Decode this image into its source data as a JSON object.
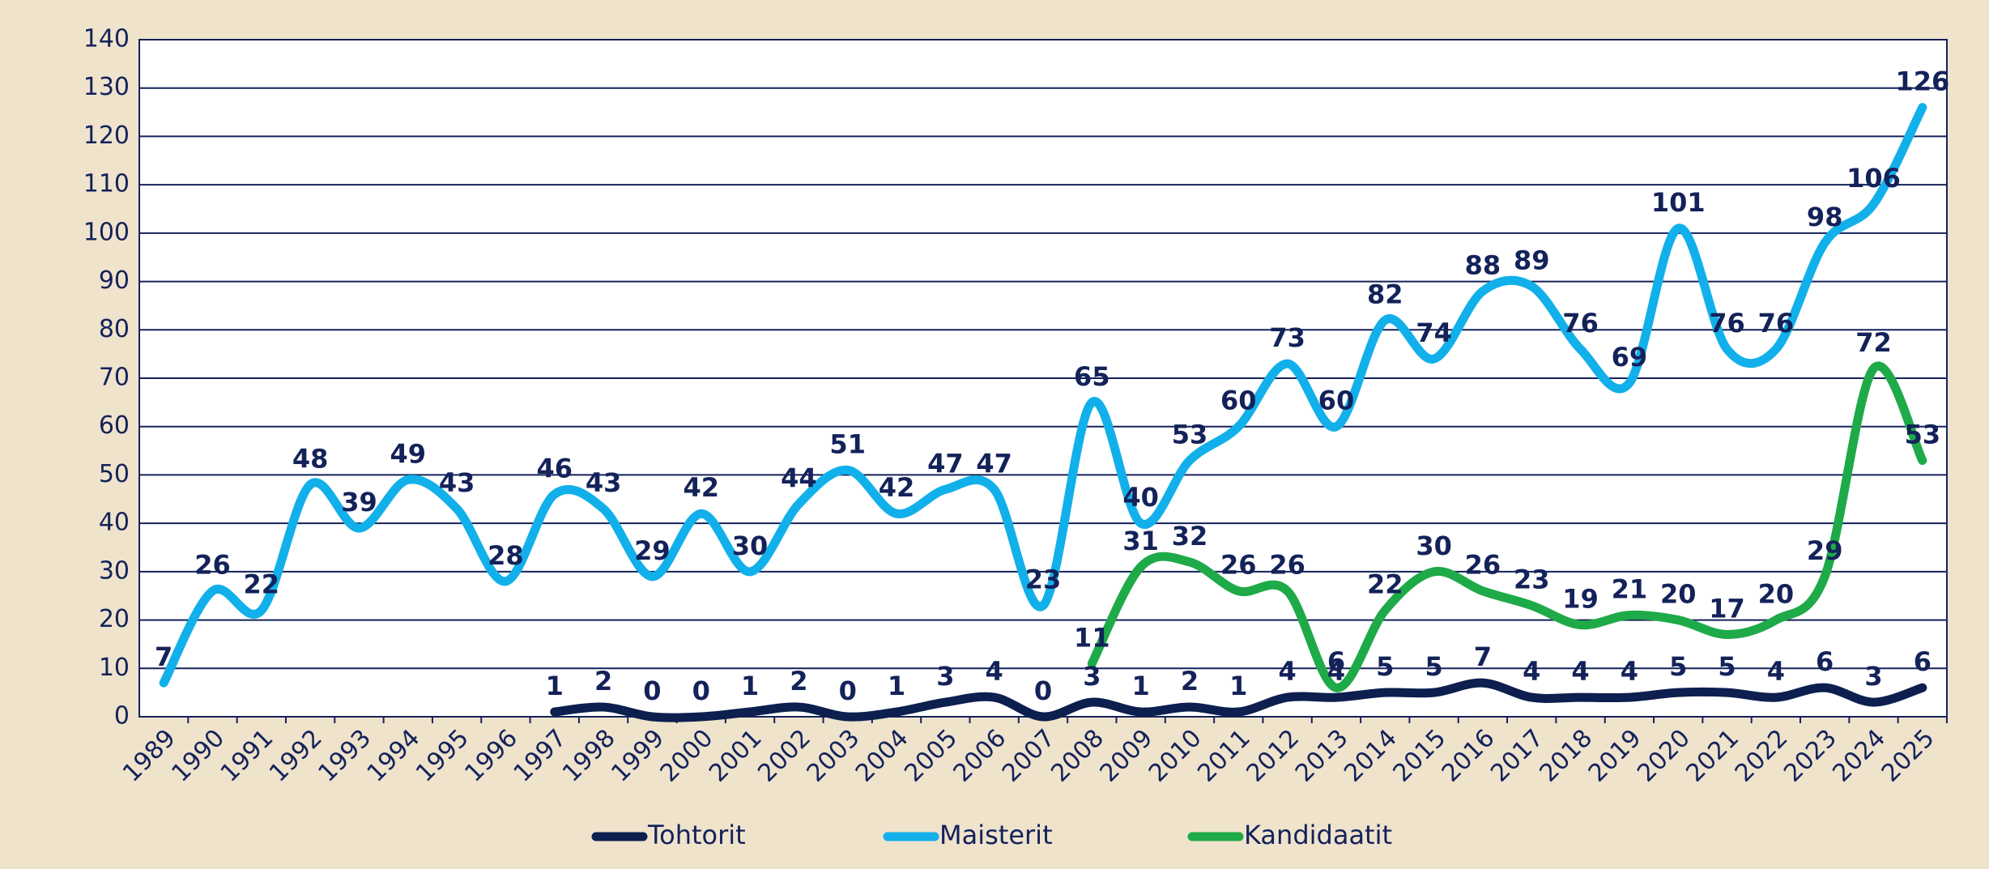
{
  "chart_data": {
    "type": "line",
    "categories": [
      "1989",
      "1990",
      "1991",
      "1992",
      "1993",
      "1994",
      "1995",
      "1996",
      "1997",
      "1998",
      "1999",
      "2000",
      "2001",
      "2002",
      "2003",
      "2004",
      "2005",
      "2006",
      "2007",
      "2008",
      "2009",
      "2010",
      "2011",
      "2012",
      "2013",
      "2014",
      "2015",
      "2016",
      "2017",
      "2018",
      "2019",
      "2020",
      "2021",
      "2022",
      "2023",
      "2024",
      "2025"
    ],
    "series": [
      {
        "name": "Tohtorit",
        "color": "#0d1f4f",
        "values": [
          null,
          null,
          null,
          null,
          null,
          null,
          null,
          null,
          1,
          2,
          0,
          0,
          1,
          2,
          0,
          1,
          3,
          4,
          0,
          3,
          1,
          2,
          1,
          4,
          4,
          5,
          5,
          7,
          4,
          4,
          4,
          5,
          5,
          4,
          6,
          3,
          6
        ]
      },
      {
        "name": "Maisterit",
        "color": "#12b0ea",
        "values": [
          7,
          26,
          22,
          48,
          39,
          49,
          43,
          28,
          46,
          43,
          29,
          42,
          30,
          44,
          51,
          42,
          47,
          47,
          23,
          65,
          40,
          53,
          60,
          73,
          60,
          82,
          74,
          88,
          89,
          76,
          69,
          101,
          76,
          76,
          98,
          106,
          126
        ]
      },
      {
        "name": "Kandidaatit",
        "color": "#1eaa48",
        "values": [
          null,
          null,
          null,
          null,
          null,
          null,
          null,
          null,
          null,
          null,
          null,
          null,
          null,
          null,
          null,
          null,
          null,
          null,
          null,
          11,
          31,
          32,
          26,
          26,
          6,
          22,
          30,
          26,
          23,
          19,
          21,
          20,
          17,
          20,
          29,
          72,
          53
        ]
      }
    ],
    "ylim": [
      0,
      140
    ],
    "yticks": [
      0,
      10,
      20,
      30,
      40,
      50,
      60,
      70,
      80,
      90,
      100,
      110,
      120,
      130,
      140
    ],
    "grid": true,
    "legend": "bottom"
  }
}
